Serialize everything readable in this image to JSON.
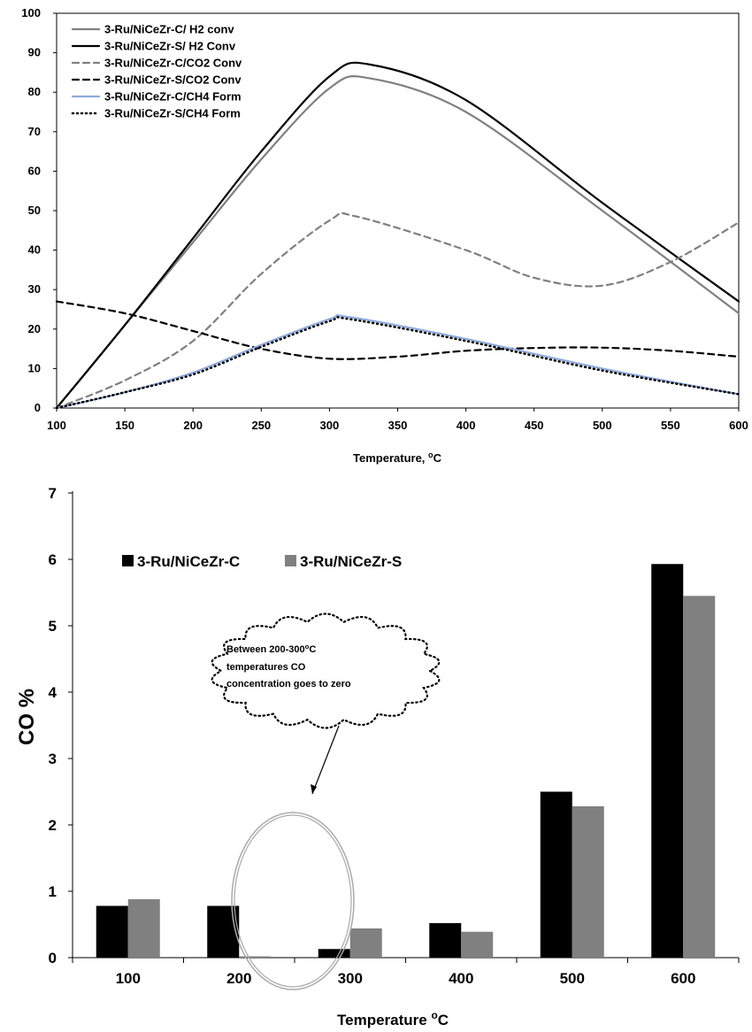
{
  "chart_data": [
    {
      "type": "line",
      "title": "",
      "xlabel": "Temperature, ",
      "xlabel_unit": "C",
      "xlabel_degree": "o",
      "ylabel": "",
      "xlim": [
        100,
        600
      ],
      "ylim": [
        0,
        100
      ],
      "x_ticks": [
        100,
        150,
        200,
        250,
        300,
        350,
        400,
        450,
        500,
        550,
        600
      ],
      "y_ticks": [
        0,
        10,
        20,
        30,
        40,
        50,
        60,
        70,
        80,
        90,
        100
      ],
      "grid": false,
      "legend_position": "top-left",
      "series": [
        {
          "name": "3-Ru/NiCeZr-C/ H2 conv",
          "color": "#808080",
          "dash": "solid",
          "x": [
            100,
            150,
            200,
            250,
            300,
            330,
            400,
            500,
            600
          ],
          "y": [
            0,
            21,
            42,
            63,
            81,
            83.5,
            75,
            50,
            24
          ]
        },
        {
          "name": "3-Ru/NiCeZr-S/ H2 Conv",
          "color": "#000000",
          "dash": "solid",
          "x": [
            100,
            150,
            200,
            250,
            300,
            330,
            400,
            500,
            600
          ],
          "y": [
            0,
            21,
            43,
            65,
            84,
            87,
            78,
            52,
            27
          ]
        },
        {
          "name": "3-Ru/NiCeZr-C/CO2 Conv",
          "color": "#808080",
          "dash": "dashed",
          "x": [
            100,
            150,
            200,
            250,
            300,
            320,
            400,
            450,
            500,
            550,
            600
          ],
          "y": [
            0,
            7,
            17,
            34,
            47.5,
            48.5,
            40,
            33,
            31,
            37,
            47
          ]
        },
        {
          "name": "3-Ru/NiCeZr-S/CO2 Conv",
          "color": "#000000",
          "dash": "dashed",
          "x": [
            100,
            150,
            200,
            250,
            300,
            350,
            400,
            450,
            500,
            550,
            600
          ],
          "y": [
            27,
            24,
            19.5,
            15,
            12.5,
            13,
            14.5,
            15.2,
            15.3,
            14.5,
            13
          ]
        },
        {
          "name": "3-Ru/NiCeZr-C/CH4 Form",
          "color": "#8eaadb",
          "dash": "solid",
          "x": [
            100,
            150,
            200,
            250,
            300,
            315,
            400,
            500,
            600
          ],
          "y": [
            0,
            4,
            9,
            16,
            22.5,
            23,
            17.5,
            10,
            3.5
          ]
        },
        {
          "name": "3-Ru/NiCeZr-S/CH4 Form",
          "color": "#000000",
          "dash": "dotted",
          "x": [
            100,
            150,
            200,
            250,
            300,
            315,
            400,
            500,
            600
          ],
          "y": [
            0,
            4,
            8.5,
            15.5,
            22,
            22.5,
            17,
            9.5,
            3.5
          ]
        }
      ]
    },
    {
      "type": "bar",
      "title": "",
      "xlabel": "Temperature ",
      "xlabel_unit": "C",
      "xlabel_degree": "o",
      "ylabel": "CO %",
      "ylim": [
        0,
        7
      ],
      "y_ticks": [
        0,
        1,
        2,
        3,
        4,
        5,
        6,
        7
      ],
      "categories": [
        "100",
        "200",
        "300",
        "400",
        "500",
        "600"
      ],
      "grid": false,
      "legend_position": "top-left",
      "series": [
        {
          "name": "3-Ru/NiCeZr-C",
          "color": "#000000",
          "values": [
            0.78,
            0.78,
            0.13,
            0.52,
            2.5,
            5.93
          ]
        },
        {
          "name": "3-Ru/NiCeZr-S",
          "color": "#808080",
          "values": [
            0.88,
            0.02,
            0.44,
            0.39,
            2.28,
            5.45
          ]
        }
      ],
      "annotation": {
        "lines": [
          "Between  200-300",
          "temperatures CO",
          "concentration goes to zero"
        ],
        "line1_degree": "o",
        "line1_unit": "C"
      }
    }
  ]
}
